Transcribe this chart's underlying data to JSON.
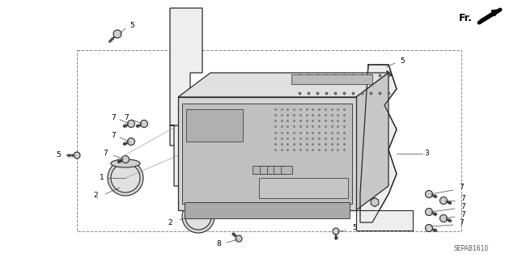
{
  "bg_color": "#ffffff",
  "diagram_id": "SEPAB1610",
  "fig_width": 6.4,
  "fig_height": 3.19,
  "dpi": 100,
  "line_color": "#2a2a2a",
  "gray_fill": "#d8d8d8",
  "light_fill": "#eeeeee",
  "dark_fill": "#aaaaaa",
  "label_fontsize": 6.5,
  "id_fontsize": 5.5,
  "fr_fontsize": 9
}
